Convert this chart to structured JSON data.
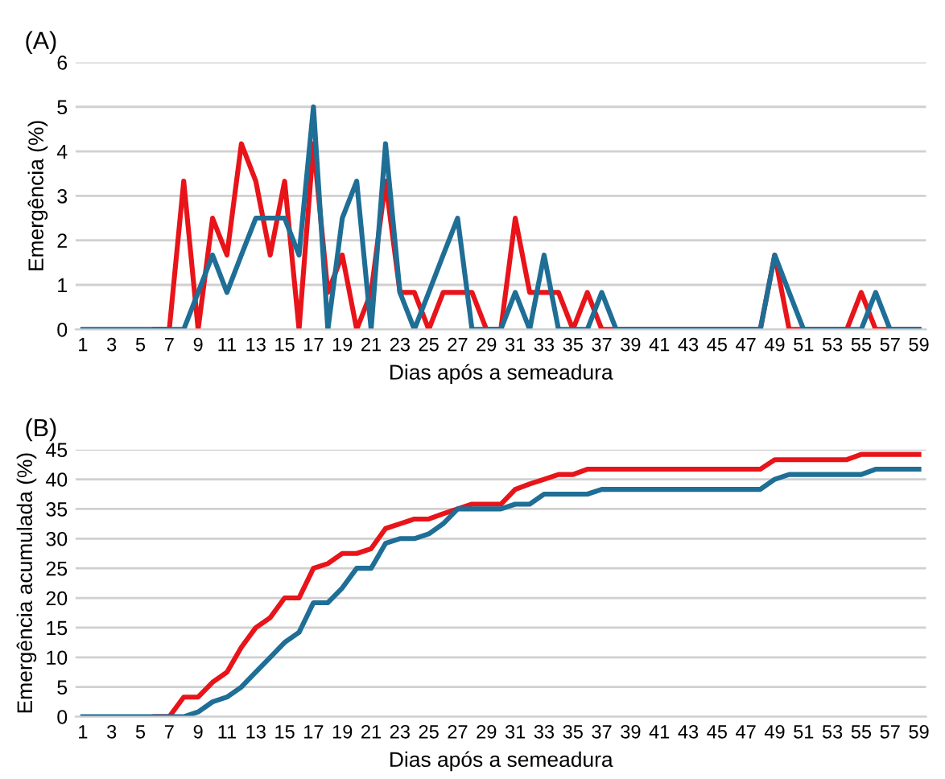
{
  "chart_data": [
    {
      "type": "line",
      "title": "(A)",
      "xlabel": "Dias após a semeadura",
      "ylabel": "Emergência (%)",
      "categories": [
        "1",
        null,
        "3",
        null,
        "5",
        null,
        "7",
        null,
        "9",
        null,
        "11",
        null,
        "13",
        null,
        "15",
        null,
        "17",
        null,
        "19",
        null,
        "21",
        null,
        "23",
        null,
        "25",
        null,
        "27",
        null,
        "29",
        null,
        "31",
        null,
        "33",
        null,
        "35",
        null,
        "37",
        null,
        "39",
        null,
        "41",
        null,
        "43",
        null,
        "45",
        null,
        "47",
        null,
        "49",
        null,
        "51",
        null,
        "53",
        null,
        "55",
        null,
        "57",
        null,
        "59"
      ],
      "ylim": [
        0,
        6
      ],
      "yticks": [
        0,
        1,
        2,
        3,
        4,
        5,
        6
      ],
      "grid": "y",
      "legend": false,
      "marker": "none",
      "line_style": "solid",
      "series": [
        {
          "color": "#e8141a",
          "values": [
            null,
            null,
            null,
            null,
            null,
            0,
            0,
            3.33,
            0,
            2.5,
            1.67,
            4.17,
            3.33,
            1.67,
            3.33,
            0,
            4.17,
            0.83,
            1.67,
            0,
            0.83,
            3.33,
            0.83,
            0.83,
            0,
            0.83,
            0.83,
            0.83,
            0,
            0,
            2.5,
            0.83,
            0.83,
            0.83,
            0,
            0.83,
            0,
            0,
            0,
            0,
            0,
            0,
            0,
            0,
            0,
            0,
            0,
            0,
            1.67,
            0,
            0,
            0,
            0,
            0,
            0.83,
            0,
            0,
            0,
            0
          ]
        },
        {
          "color": "#1f6e96",
          "values": [
            0,
            0,
            0,
            0,
            0,
            0,
            0,
            0,
            0.83,
            1.67,
            0.83,
            1.67,
            2.5,
            2.5,
            2.5,
            1.67,
            5,
            0,
            2.5,
            3.33,
            0,
            4.17,
            0.83,
            0,
            0.83,
            1.67,
            2.5,
            0,
            0,
            0,
            0.83,
            0,
            1.67,
            0,
            0,
            0,
            0.83,
            0,
            0,
            0,
            0,
            0,
            0,
            0,
            0,
            0,
            0,
            0,
            1.67,
            0.83,
            0,
            0,
            0,
            0,
            0,
            0.83,
            0,
            0,
            0
          ]
        }
      ]
    },
    {
      "type": "line",
      "title": "(B)",
      "xlabel": "Dias após a semeadura",
      "ylabel": "Emergência acumulada (%)",
      "categories": [
        "1",
        null,
        "3",
        null,
        "5",
        null,
        "7",
        null,
        "9",
        null,
        "11",
        null,
        "13",
        null,
        "15",
        null,
        "17",
        null,
        "19",
        null,
        "21",
        null,
        "23",
        null,
        "25",
        null,
        "27",
        null,
        "29",
        null,
        "31",
        null,
        "33",
        null,
        "35",
        null,
        "37",
        null,
        "39",
        null,
        "41",
        null,
        "43",
        null,
        "45",
        null,
        "47",
        null,
        "49",
        null,
        "51",
        null,
        "53",
        null,
        "55",
        null,
        "57",
        null,
        "59"
      ],
      "ylim": [
        0,
        45
      ],
      "yticks": [
        0,
        5,
        10,
        15,
        20,
        25,
        30,
        35,
        40,
        45
      ],
      "grid": "y",
      "legend": false,
      "marker": "none",
      "line_style": "solid",
      "series": [
        {
          "color": "#e8141a",
          "values": [
            null,
            null,
            null,
            null,
            null,
            0,
            0,
            3.3,
            3.3,
            5.8,
            7.5,
            11.7,
            15,
            16.7,
            20,
            20,
            25,
            25.8,
            27.5,
            27.5,
            28.3,
            31.7,
            32.5,
            33.3,
            33.3,
            34.2,
            35,
            35.8,
            35.8,
            35.8,
            38.3,
            39.2,
            40,
            40.8,
            40.8,
            41.7,
            41.7,
            41.7,
            41.7,
            41.7,
            41.7,
            41.7,
            41.7,
            41.7,
            41.7,
            41.7,
            41.7,
            41.7,
            43.3,
            43.3,
            43.3,
            43.3,
            43.3,
            43.3,
            44.2,
            44.2,
            44.2,
            44.2,
            44.2
          ]
        },
        {
          "color": "#1f6e96",
          "values": [
            0,
            0,
            0,
            0,
            0,
            0,
            0,
            0,
            0.8,
            2.5,
            3.3,
            5,
            7.5,
            10,
            12.5,
            14.2,
            19.2,
            19.2,
            21.7,
            25,
            25,
            29.2,
            30,
            30,
            30.8,
            32.5,
            35,
            35,
            35,
            35,
            35.8,
            35.8,
            37.5,
            37.5,
            37.5,
            37.5,
            38.3,
            38.3,
            38.3,
            38.3,
            38.3,
            38.3,
            38.3,
            38.3,
            38.3,
            38.3,
            38.3,
            38.3,
            40,
            40.8,
            40.8,
            40.8,
            40.8,
            40.8,
            40.8,
            41.7,
            41.7,
            41.7,
            41.7
          ]
        }
      ]
    }
  ]
}
